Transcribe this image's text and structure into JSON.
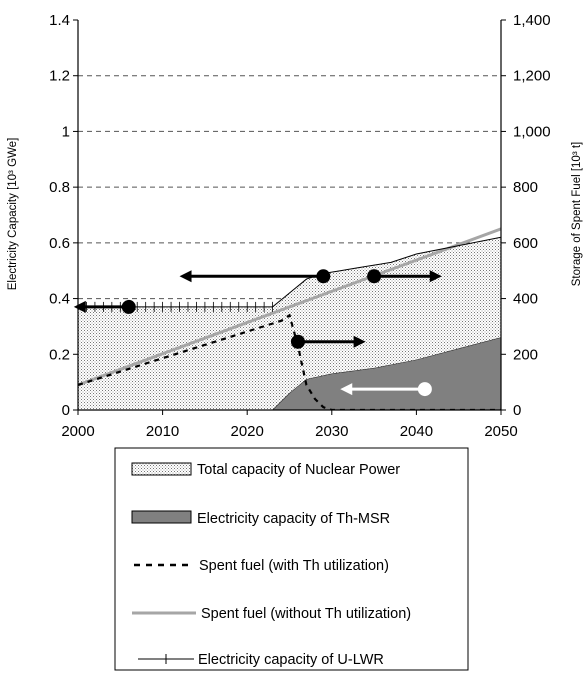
{
  "chart_data": {
    "type": "area",
    "x_ticks": [
      "2000",
      "2010",
      "2020",
      "2030",
      "2040",
      "2050"
    ],
    "y_left_ticks": [
      "0",
      "0.2",
      "0.4",
      "0.6",
      "0.8",
      "1",
      "1.2",
      "1.4"
    ],
    "y_right_ticks": [
      "0",
      "200",
      "400",
      "600",
      "800",
      "1,000",
      "1,200",
      "1,400"
    ],
    "ylabel_left": "Electricity Capacity [10³ GWe]",
    "ylabel_right": "Storage of Spent Fuel [10³ t]",
    "xlim": [
      2000,
      2050
    ],
    "ylim_left": [
      0,
      1.4
    ],
    "ylim_right": [
      0,
      1400
    ],
    "grid": "horizontal dashed",
    "legend_position": "bottom",
    "series": [
      {
        "name": "Total capacity of Nuclear Power",
        "style": "dotted-fill",
        "axis": "left",
        "x": [
          2000,
          2023,
          2025,
          2027,
          2029,
          2031,
          2033,
          2035,
          2037,
          2040,
          2045,
          2050
        ],
        "y": [
          0.37,
          0.37,
          0.42,
          0.47,
          0.49,
          0.5,
          0.51,
          0.52,
          0.53,
          0.56,
          0.59,
          0.62
        ]
      },
      {
        "name": "Electricity capacity of Th-MSR",
        "style": "dark-fill",
        "axis": "left",
        "x": [
          2000,
          2023,
          2025,
          2027,
          2030,
          2035,
          2040,
          2045,
          2050
        ],
        "y": [
          0,
          0,
          0.06,
          0.11,
          0.13,
          0.15,
          0.18,
          0.22,
          0.26
        ]
      },
      {
        "name": "Spent fuel (with Th utilization)",
        "style": "dashed-line",
        "axis": "right",
        "x": [
          2000,
          2024,
          2025,
          2026,
          2027,
          2028,
          2029,
          2030,
          2050
        ],
        "y": [
          90,
          320,
          340,
          230,
          90,
          40,
          10,
          0,
          0
        ]
      },
      {
        "name": "Spent fuel (without Th utilization)",
        "style": "gray-line",
        "axis": "right",
        "x": [
          2000,
          2050
        ],
        "y": [
          90,
          650
        ]
      },
      {
        "name": "Electricity capacity of U-LWR",
        "style": "thin-line",
        "axis": "left",
        "x": [
          2000,
          2023,
          2025,
          2027,
          2029,
          2031,
          2033,
          2035,
          2037,
          2040,
          2045,
          2050
        ],
        "y": [
          0.37,
          0.37,
          0.42,
          0.47,
          0.49,
          0.5,
          0.51,
          0.52,
          0.53,
          0.56,
          0.59,
          0.62
        ]
      }
    ],
    "annotations": [
      {
        "type": "arrow",
        "from": [
          2006,
          0.37
        ],
        "to": [
          1999.5,
          0.37
        ],
        "color": "#000"
      },
      {
        "type": "arrow",
        "from": [
          2029,
          0.48
        ],
        "to": [
          2012,
          0.48
        ],
        "color": "#000"
      },
      {
        "type": "arrow",
        "from": [
          2035,
          0.48
        ],
        "to": [
          2043,
          0.48
        ],
        "color": "#000"
      },
      {
        "type": "arrow",
        "from": [
          2026,
          0.245
        ],
        "to": [
          2034,
          0.245
        ],
        "color": "#000"
      },
      {
        "type": "arrow",
        "from": [
          2041,
          0.075
        ],
        "to": [
          2031,
          0.075
        ],
        "color": "#fff"
      }
    ]
  }
}
